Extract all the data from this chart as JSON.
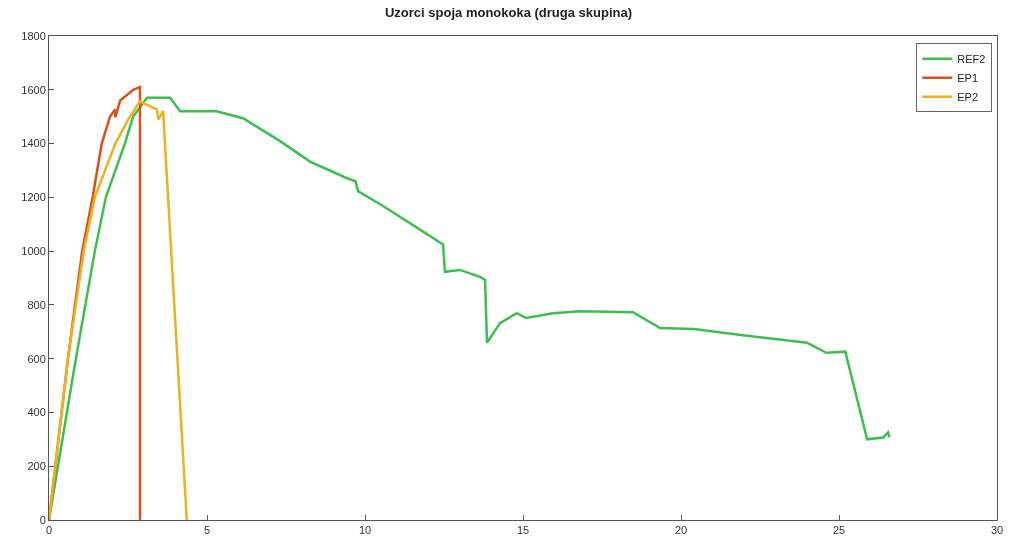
{
  "chart_data": {
    "type": "line",
    "title": "Uzorci spoja monokoka (druga skupina)",
    "xlim": [
      0,
      30
    ],
    "xticks": [
      0,
      5,
      10,
      15,
      20,
      25,
      30
    ],
    "ylim": [
      0,
      1800
    ],
    "yticks": [
      0,
      200,
      400,
      600,
      800,
      1000,
      1200,
      1400,
      1600,
      1800
    ],
    "legend": "top right",
    "marker": "none",
    "line_style": "solid",
    "series": [
      {
        "name": "REF2",
        "color": "#3dbf4f",
        "x": [
          0,
          0.85,
          1.45,
          1.8,
          2.4,
          2.66,
          3.1,
          3.83,
          4.15,
          5.3,
          6.14,
          7.3,
          8.26,
          9.43,
          9.7,
          9.78,
          10.57,
          11.74,
          12.47,
          12.53,
          13.0,
          13.64,
          13.8,
          13.86,
          14.27,
          14.8,
          15.1,
          15.95,
          16.8,
          18.48,
          19.34,
          20.4,
          22.09,
          23.99,
          24.6,
          25.2,
          25.89,
          26.4,
          26.55,
          26.6
        ],
        "values": [
          0,
          600,
          1000,
          1200,
          1400,
          1500,
          1570,
          1570,
          1520,
          1520,
          1494,
          1410,
          1333,
          1271,
          1260,
          1223,
          1168,
          1080,
          1025,
          923,
          930,
          904,
          893,
          659,
          732,
          769,
          751,
          769,
          776,
          773,
          714,
          710,
          685,
          659,
          622,
          626,
          300,
          307,
          326,
          307
        ]
      },
      {
        "name": "EP1",
        "color": "#d95319",
        "x": [
          0,
          0.6,
          1.05,
          1.38,
          1.67,
          1.93,
          2.09,
          2.1,
          2.25,
          2.67,
          2.88,
          2.88
        ],
        "values": [
          0,
          600,
          1000,
          1200,
          1400,
          1500,
          1527,
          1497,
          1560,
          1600,
          1610,
          0
        ]
      },
      {
        "name": "EP2",
        "color": "#edb120",
        "x": [
          0,
          0.6,
          1.1,
          1.45,
          2.1,
          2.56,
          2.88,
          3.09,
          3.41,
          3.46,
          3.61,
          4.36
        ],
        "values": [
          0,
          600,
          1000,
          1200,
          1400,
          1500,
          1557,
          1545,
          1527,
          1490,
          1521,
          0
        ]
      }
    ]
  }
}
